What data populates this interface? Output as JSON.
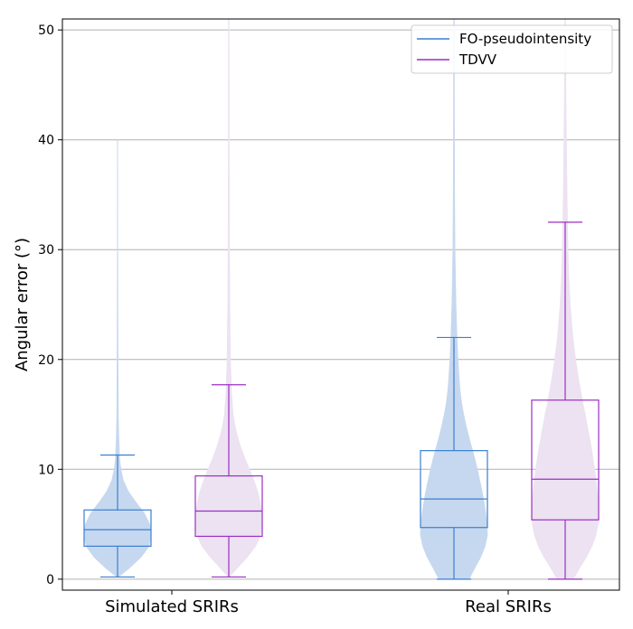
{
  "chart_data": {
    "type": "violin+box",
    "ylabel": "Angular error (°)",
    "ylim": [
      -1,
      51
    ],
    "yticks": [
      0,
      10,
      20,
      30,
      40,
      50
    ],
    "grid": "y",
    "legend_position": "top-right",
    "categories": [
      "Simulated SRIRs",
      "Real SRIRs"
    ],
    "series": [
      {
        "name": "FO-pseudointensity",
        "color": "#3a7fd0",
        "fill": "#c6d8ef",
        "boxes": [
          {
            "whisker_low": 0.2,
            "q1": 3.0,
            "median": 4.5,
            "q3": 6.3,
            "whisker_high": 11.3
          },
          {
            "whisker_low": 0.0,
            "q1": 4.7,
            "median": 7.3,
            "q3": 11.7,
            "whisker_high": 22.0
          }
        ],
        "violins": [
          {
            "min": 0.2,
            "max": 40.0,
            "profile": [
              [
                0.2,
                0.02
              ],
              [
                0.5,
                0.14
              ],
              [
                1,
                0.35
              ],
              [
                2,
                0.7
              ],
              [
                3,
                0.94
              ],
              [
                4,
                1.0
              ],
              [
                5,
                0.96
              ],
              [
                6,
                0.8
              ],
              [
                7,
                0.55
              ],
              [
                8,
                0.32
              ],
              [
                9,
                0.17
              ],
              [
                10,
                0.1
              ],
              [
                11,
                0.06
              ],
              [
                13,
                0.035
              ],
              [
                15,
                0.022
              ],
              [
                18,
                0.015
              ],
              [
                22,
                0.01
              ],
              [
                30,
                0.006
              ],
              [
                40,
                0.004
              ]
            ]
          },
          {
            "min": 0.0,
            "max": 51.0,
            "profile": [
              [
                0.0,
                0.45
              ],
              [
                1,
                0.62
              ],
              [
                2,
                0.8
              ],
              [
                3,
                0.93
              ],
              [
                4,
                1.0
              ],
              [
                5,
                0.99
              ],
              [
                6,
                0.95
              ],
              [
                7,
                0.9
              ],
              [
                8,
                0.84
              ],
              [
                9,
                0.77
              ],
              [
                10,
                0.7
              ],
              [
                11,
                0.62
              ],
              [
                12,
                0.53
              ],
              [
                13,
                0.44
              ],
              [
                14,
                0.36
              ],
              [
                15,
                0.29
              ],
              [
                16,
                0.23
              ],
              [
                17,
                0.19
              ],
              [
                18,
                0.16
              ],
              [
                20,
                0.12
              ],
              [
                22,
                0.09
              ],
              [
                25,
                0.06
              ],
              [
                30,
                0.03
              ],
              [
                35,
                0.02
              ],
              [
                40,
                0.013
              ],
              [
                51,
                0.008
              ]
            ]
          }
        ]
      },
      {
        "name": "TDVV",
        "color": "#9b2fc4",
        "fill": "#ece2f1",
        "boxes": [
          {
            "whisker_low": 0.2,
            "q1": 3.9,
            "median": 6.2,
            "q3": 9.4,
            "whisker_high": 17.7
          },
          {
            "whisker_low": 0.0,
            "q1": 5.4,
            "median": 9.1,
            "q3": 16.3,
            "whisker_high": 32.5
          }
        ],
        "violins": [
          {
            "min": 0.2,
            "max": 51.0,
            "profile": [
              [
                0.2,
                0.02
              ],
              [
                0.5,
                0.1
              ],
              [
                1,
                0.25
              ],
              [
                2,
                0.55
              ],
              [
                3,
                0.8
              ],
              [
                4,
                0.95
              ],
              [
                5,
                1.0
              ],
              [
                6,
                0.99
              ],
              [
                7,
                0.94
              ],
              [
                8,
                0.86
              ],
              [
                9,
                0.75
              ],
              [
                10,
                0.62
              ],
              [
                11,
                0.48
              ],
              [
                12,
                0.36
              ],
              [
                13,
                0.26
              ],
              [
                14,
                0.18
              ],
              [
                15,
                0.13
              ],
              [
                17,
                0.08
              ],
              [
                20,
                0.05
              ],
              [
                25,
                0.03
              ],
              [
                30,
                0.02
              ],
              [
                40,
                0.012
              ],
              [
                51,
                0.008
              ]
            ]
          },
          {
            "min": 0.0,
            "max": 51.0,
            "profile": [
              [
                0.0,
                0.24
              ],
              [
                1,
                0.43
              ],
              [
                2,
                0.63
              ],
              [
                3,
                0.8
              ],
              [
                4,
                0.92
              ],
              [
                5,
                0.98
              ],
              [
                6,
                1.0
              ],
              [
                7,
                0.99
              ],
              [
                8,
                0.96
              ],
              [
                9,
                0.92
              ],
              [
                10,
                0.88
              ],
              [
                11,
                0.83
              ],
              [
                12,
                0.78
              ],
              [
                13,
                0.72
              ],
              [
                14,
                0.66
              ],
              [
                15,
                0.6
              ],
              [
                16,
                0.53
              ],
              [
                17,
                0.47
              ],
              [
                18,
                0.41
              ],
              [
                19,
                0.36
              ],
              [
                20,
                0.31
              ],
              [
                22,
                0.23
              ],
              [
                25,
                0.15
              ],
              [
                28,
                0.1
              ],
              [
                32,
                0.07
              ],
              [
                36,
                0.05
              ],
              [
                40,
                0.035
              ],
              [
                45,
                0.02
              ],
              [
                51,
                0.012
              ]
            ]
          }
        ]
      }
    ]
  }
}
